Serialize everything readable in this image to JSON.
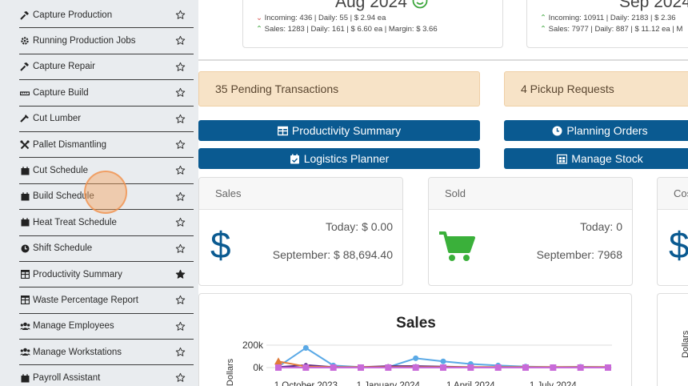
{
  "sidebar": {
    "items": [
      {
        "label": "Capture Production",
        "icon": "hammer-icon",
        "starred": false
      },
      {
        "label": "Running Production Jobs",
        "icon": "cogs-icon",
        "starred": false
      },
      {
        "label": "Capture Repair",
        "icon": "hammer-icon",
        "starred": false
      },
      {
        "label": "Capture Build",
        "icon": "ruler-icon",
        "starred": false
      },
      {
        "label": "Cut Lumber",
        "icon": "saw-icon",
        "starred": false
      },
      {
        "label": "Pallet Dismantling",
        "icon": "tools-icon",
        "starred": false
      },
      {
        "label": "Cut Schedule",
        "icon": "calendar-icon",
        "starred": false
      },
      {
        "label": "Build Schedule",
        "icon": "calendar-icon",
        "starred": false
      },
      {
        "label": "Heat Treat Schedule",
        "icon": "calendar-icon",
        "starred": false
      },
      {
        "label": "Shift Schedule",
        "icon": "clock-icon",
        "starred": false
      },
      {
        "label": "Productivity Summary",
        "icon": "table-icon",
        "starred": true
      },
      {
        "label": "Waste Percentage Report",
        "icon": "table-icon",
        "starred": false
      },
      {
        "label": "Manage Employees",
        "icon": "users-icon",
        "starred": false
      },
      {
        "label": "Manage Workstations",
        "icon": "users-icon",
        "starred": false
      },
      {
        "label": "Payroll Assistant",
        "icon": "calendar-icon",
        "starred": false
      }
    ]
  },
  "top_cards": [
    {
      "title": "Aug 2024",
      "incoming": "Incoming: 436 | Daily: 55 | $ 2.94 ea",
      "sales": "Sales: 1283 | Daily: 161 | $ 6.60 ea | Margin: $ 3.66"
    },
    {
      "title": "Sep 2024",
      "incoming": "Incoming: 10911 | Daily: 2183 | $ 2.36",
      "sales": "Sales: 7977 | Daily: 887 | $ 11.12 ea | M"
    }
  ],
  "pending": {
    "transactions": "35 Pending Transactions",
    "pickups": "4 Pickup Requests"
  },
  "buttons": {
    "productivity_summary": "Productivity Summary",
    "planning_orders": "Planning Orders",
    "logistics_planner": "Logistics Planner",
    "manage_stock": "Manage Stock"
  },
  "stats": {
    "sales": {
      "title": "Sales",
      "today": "Today: $ 0.00",
      "month": "September: $ 88,694.40"
    },
    "sold": {
      "title": "Sold",
      "today": "Today: 0",
      "month": "September: 7968"
    },
    "cost": {
      "title": "Cos"
    }
  },
  "chart_data": {
    "type": "line",
    "title": "Sales",
    "ylabel": "Dollars",
    "ylim": [
      0,
      250000
    ],
    "yticks": [
      "200k",
      "0k"
    ],
    "xticks": [
      "1 October 2023",
      "1 January 2024",
      "1 April 2024",
      "1 July 2024"
    ],
    "x": [
      "2023-09",
      "2023-10",
      "2023-11",
      "2023-12",
      "2024-01",
      "2024-02",
      "2024-03",
      "2024-04",
      "2024-05",
      "2024-06",
      "2024-07",
      "2024-08",
      "2024-09"
    ],
    "series": [
      {
        "color": "#5aa9e6",
        "values": [
          10000,
          190000,
          20000,
          5000,
          5000,
          90000,
          60000,
          35000,
          20000,
          10000,
          5000,
          8000,
          5000
        ]
      },
      {
        "color": "#5a2a8a",
        "values": [
          5000,
          25000,
          5000,
          5000,
          15000,
          15000,
          10000,
          5000,
          5000,
          5000,
          5000,
          5000,
          5000
        ]
      },
      {
        "color": "#e07b39",
        "values": [
          60000,
          10000,
          5000,
          5000,
          5000,
          5000,
          5000,
          5000,
          5000,
          5000,
          5000,
          5000,
          5000
        ]
      },
      {
        "color": "#c86ad8",
        "values": [
          0,
          0,
          0,
          0,
          0,
          0,
          0,
          0,
          0,
          0,
          0,
          0,
          0
        ]
      }
    ]
  },
  "colors": {
    "primary_button": "#0a5a91",
    "pending_bg": "#f7e3c7",
    "sales_icon": "#0a5a91",
    "sold_icon": "#3ab03a"
  }
}
